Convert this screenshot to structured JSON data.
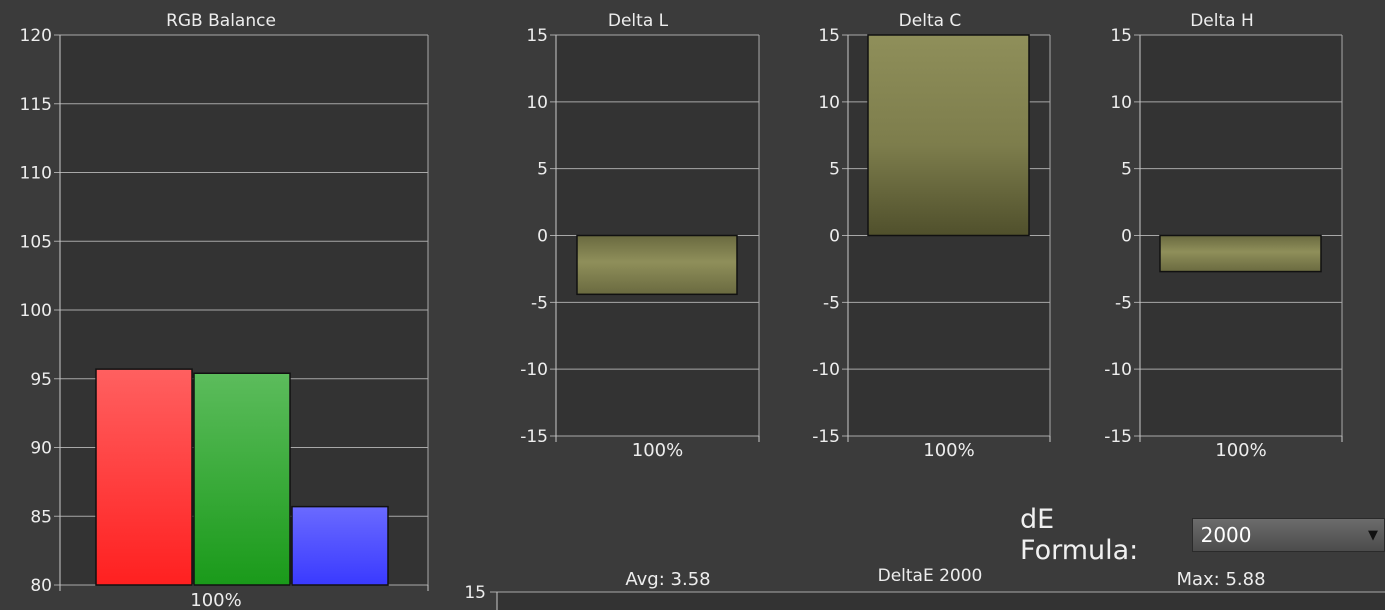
{
  "chart_data": [
    {
      "type": "bar",
      "title": "RGB Balance",
      "categories": [
        "100%"
      ],
      "series": [
        {
          "values": [
            95.7
          ],
          "color": "#e62222"
        },
        {
          "values": [
            95.4
          ],
          "color": "#229922"
        },
        {
          "values": [
            85.7
          ],
          "color": "#4a4aff"
        }
      ],
      "ylim": [
        80,
        120
      ],
      "yticks": [
        80,
        85,
        90,
        95,
        100,
        105,
        110,
        115,
        120
      ],
      "grid": true
    },
    {
      "type": "bar",
      "title": "Delta L",
      "categories": [
        "100%"
      ],
      "values": [
        -4.4
      ],
      "ylim": [
        -15,
        15
      ],
      "yticks": [
        -15,
        -10,
        -5,
        0,
        5,
        10,
        15
      ],
      "grid": true
    },
    {
      "type": "bar",
      "title": "Delta C",
      "categories": [
        "100%"
      ],
      "values": [
        15
      ],
      "ylim": [
        -15,
        15
      ],
      "yticks": [
        -15,
        -10,
        -5,
        0,
        5,
        10,
        15
      ],
      "grid": true
    },
    {
      "type": "bar",
      "title": "Delta H",
      "categories": [
        "100%"
      ],
      "values": [
        -2.7
      ],
      "ylim": [
        -15,
        15
      ],
      "yticks": [
        -15,
        -10,
        -5,
        0,
        5,
        10,
        15
      ],
      "grid": true
    },
    {
      "type": "bar",
      "title": "DeltaE 2000",
      "avg_label": "Avg: 3.58",
      "max_label": "Max: 5.88",
      "yticks_visible": [
        15
      ]
    }
  ],
  "de_formula": {
    "label": "dE Formula:",
    "selected": "2000"
  }
}
